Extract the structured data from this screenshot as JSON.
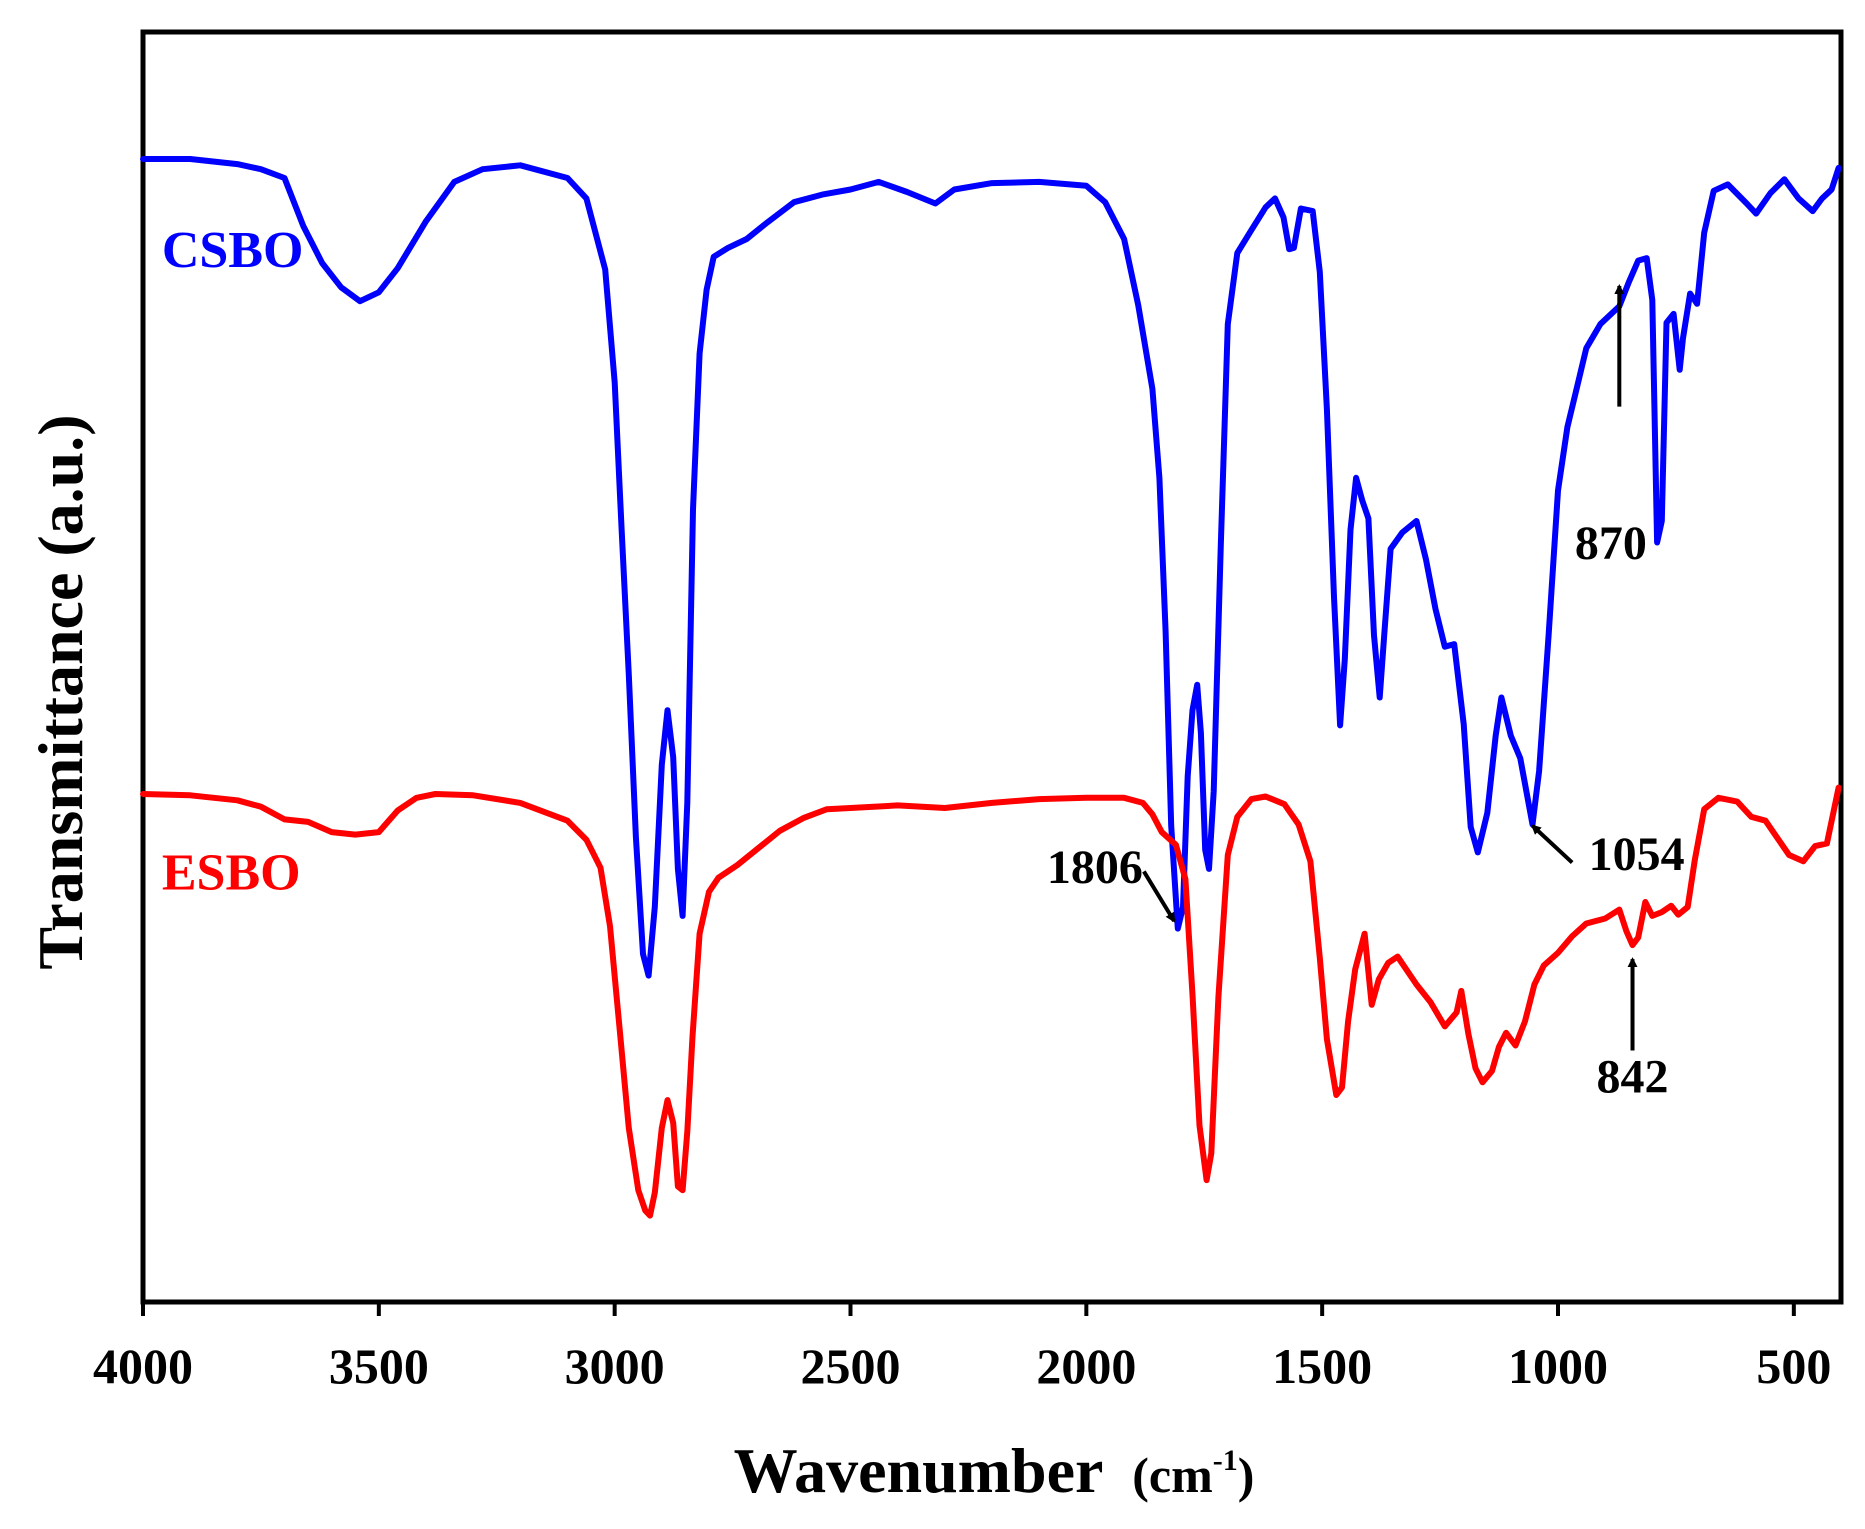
{
  "chart_data": {
    "type": "line",
    "title": "",
    "xlabel": "Wavenumber",
    "xlabel_unit": "(cm",
    "xlabel_sup": "-1",
    "xlabel_close": ")",
    "ylabel": "Transmittance (a.u.)",
    "xlim": [
      4000,
      400
    ],
    "ylim": [
      0,
      100
    ],
    "x_reversed": true,
    "y_ticks_shown": false,
    "grid": false,
    "x_ticks": [
      4000,
      3500,
      3000,
      2500,
      2000,
      1500,
      1000,
      500
    ],
    "x_tick_labels": [
      "4000",
      "3500",
      "3000",
      "2500",
      "2000",
      "1500",
      "1000",
      "500"
    ],
    "series": [
      {
        "name": "CSBO",
        "color": "#0000ff",
        "points": [
          [
            4000,
            90.0
          ],
          [
            3900,
            90.0
          ],
          [
            3800,
            89.6
          ],
          [
            3750,
            89.2
          ],
          [
            3700,
            88.5
          ],
          [
            3660,
            84.7
          ],
          [
            3620,
            81.8
          ],
          [
            3580,
            79.9
          ],
          [
            3540,
            78.8
          ],
          [
            3500,
            79.5
          ],
          [
            3460,
            81.4
          ],
          [
            3400,
            85.1
          ],
          [
            3340,
            88.2
          ],
          [
            3280,
            89.2
          ],
          [
            3200,
            89.5
          ],
          [
            3100,
            88.5
          ],
          [
            3060,
            86.9
          ],
          [
            3020,
            81.3
          ],
          [
            3000,
            72.4
          ],
          [
            2985,
            60.7
          ],
          [
            2970,
            49.4
          ],
          [
            2955,
            36.6
          ],
          [
            2940,
            27.4
          ],
          [
            2928,
            25.7
          ],
          [
            2915,
            31.1
          ],
          [
            2900,
            42.3
          ],
          [
            2888,
            46.6
          ],
          [
            2876,
            42.9
          ],
          [
            2866,
            34.1
          ],
          [
            2856,
            30.4
          ],
          [
            2846,
            39.3
          ],
          [
            2834,
            62.4
          ],
          [
            2820,
            74.7
          ],
          [
            2805,
            79.7
          ],
          [
            2790,
            82.3
          ],
          [
            2760,
            83.0
          ],
          [
            2720,
            83.7
          ],
          [
            2680,
            84.9
          ],
          [
            2620,
            86.6
          ],
          [
            2560,
            87.2
          ],
          [
            2500,
            87.6
          ],
          [
            2440,
            88.2
          ],
          [
            2380,
            87.4
          ],
          [
            2320,
            86.5
          ],
          [
            2280,
            87.6
          ],
          [
            2200,
            88.1
          ],
          [
            2100,
            88.2
          ],
          [
            2000,
            87.9
          ],
          [
            1960,
            86.6
          ],
          [
            1920,
            83.7
          ],
          [
            1890,
            78.5
          ],
          [
            1860,
            71.9
          ],
          [
            1845,
            64.9
          ],
          [
            1832,
            52.8
          ],
          [
            1820,
            37.5
          ],
          [
            1806,
            29.4
          ],
          [
            1795,
            31.1
          ],
          [
            1785,
            41.4
          ],
          [
            1775,
            46.6
          ],
          [
            1765,
            48.6
          ],
          [
            1757,
            44.8
          ],
          [
            1748,
            35.6
          ],
          [
            1740,
            34.1
          ],
          [
            1730,
            40.2
          ],
          [
            1715,
            59.6
          ],
          [
            1700,
            77.0
          ],
          [
            1680,
            82.6
          ],
          [
            1650,
            84.4
          ],
          [
            1620,
            86.2
          ],
          [
            1600,
            86.9
          ],
          [
            1582,
            85.4
          ],
          [
            1570,
            82.9
          ],
          [
            1560,
            83.0
          ],
          [
            1545,
            86.1
          ],
          [
            1520,
            85.9
          ],
          [
            1505,
            81.1
          ],
          [
            1490,
            70.3
          ],
          [
            1475,
            55.5
          ],
          [
            1462,
            45.4
          ],
          [
            1452,
            50.6
          ],
          [
            1440,
            60.8
          ],
          [
            1428,
            64.9
          ],
          [
            1415,
            63.1
          ],
          [
            1402,
            61.7
          ],
          [
            1390,
            52.5
          ],
          [
            1378,
            47.6
          ],
          [
            1368,
            52.7
          ],
          [
            1355,
            59.3
          ],
          [
            1330,
            60.6
          ],
          [
            1300,
            61.5
          ],
          [
            1280,
            58.5
          ],
          [
            1260,
            54.6
          ],
          [
            1240,
            51.6
          ],
          [
            1220,
            51.8
          ],
          [
            1200,
            45.5
          ],
          [
            1185,
            37.4
          ],
          [
            1170,
            35.4
          ],
          [
            1150,
            38.5
          ],
          [
            1132,
            44.6
          ],
          [
            1120,
            47.6
          ],
          [
            1100,
            44.6
          ],
          [
            1080,
            42.8
          ],
          [
            1054,
            37.6
          ],
          [
            1040,
            41.8
          ],
          [
            1020,
            52.5
          ],
          [
            1000,
            63.9
          ],
          [
            980,
            68.9
          ],
          [
            960,
            72.0
          ],
          [
            940,
            75.1
          ],
          [
            910,
            77.0
          ],
          [
            870,
            78.4
          ],
          [
            850,
            80.3
          ],
          [
            830,
            82.0
          ],
          [
            812,
            82.2
          ],
          [
            800,
            78.9
          ],
          [
            790,
            59.8
          ],
          [
            780,
            61.5
          ],
          [
            770,
            77.1
          ],
          [
            755,
            77.8
          ],
          [
            742,
            73.4
          ],
          [
            735,
            75.9
          ],
          [
            720,
            79.4
          ],
          [
            705,
            78.6
          ],
          [
            690,
            84.2
          ],
          [
            670,
            87.5
          ],
          [
            640,
            88.0
          ],
          [
            600,
            86.5
          ],
          [
            580,
            85.7
          ],
          [
            550,
            87.3
          ],
          [
            520,
            88.4
          ],
          [
            490,
            86.9
          ],
          [
            460,
            85.9
          ],
          [
            440,
            86.9
          ],
          [
            420,
            87.6
          ],
          [
            405,
            89.3
          ]
        ]
      },
      {
        "name": "ESBO",
        "color": "#ff0000",
        "points": [
          [
            4000,
            40.0
          ],
          [
            3900,
            39.9
          ],
          [
            3800,
            39.5
          ],
          [
            3750,
            39.0
          ],
          [
            3700,
            38.0
          ],
          [
            3650,
            37.8
          ],
          [
            3600,
            37.0
          ],
          [
            3550,
            36.8
          ],
          [
            3500,
            37.0
          ],
          [
            3460,
            38.7
          ],
          [
            3420,
            39.7
          ],
          [
            3380,
            40.0
          ],
          [
            3300,
            39.9
          ],
          [
            3200,
            39.3
          ],
          [
            3100,
            37.9
          ],
          [
            3060,
            36.4
          ],
          [
            3030,
            34.2
          ],
          [
            3010,
            29.6
          ],
          [
            2990,
            21.7
          ],
          [
            2970,
            13.7
          ],
          [
            2950,
            8.8
          ],
          [
            2935,
            7.2
          ],
          [
            2925,
            6.8
          ],
          [
            2915,
            8.6
          ],
          [
            2900,
            13.7
          ],
          [
            2888,
            15.9
          ],
          [
            2876,
            14.1
          ],
          [
            2866,
            9.1
          ],
          [
            2856,
            8.8
          ],
          [
            2846,
            13.4
          ],
          [
            2835,
            20.9
          ],
          [
            2820,
            29.0
          ],
          [
            2800,
            32.3
          ],
          [
            2780,
            33.4
          ],
          [
            2740,
            34.4
          ],
          [
            2700,
            35.6
          ],
          [
            2650,
            37.1
          ],
          [
            2600,
            38.1
          ],
          [
            2550,
            38.8
          ],
          [
            2500,
            38.9
          ],
          [
            2400,
            39.1
          ],
          [
            2300,
            38.9
          ],
          [
            2200,
            39.3
          ],
          [
            2100,
            39.6
          ],
          [
            2000,
            39.7
          ],
          [
            1920,
            39.7
          ],
          [
            1880,
            39.3
          ],
          [
            1860,
            38.4
          ],
          [
            1840,
            37.0
          ],
          [
            1810,
            36.0
          ],
          [
            1790,
            33.3
          ],
          [
            1775,
            24.2
          ],
          [
            1760,
            13.9
          ],
          [
            1745,
            9.6
          ],
          [
            1735,
            11.7
          ],
          [
            1720,
            24.0
          ],
          [
            1700,
            35.2
          ],
          [
            1680,
            38.2
          ],
          [
            1650,
            39.6
          ],
          [
            1620,
            39.8
          ],
          [
            1580,
            39.2
          ],
          [
            1550,
            37.6
          ],
          [
            1525,
            34.7
          ],
          [
            1505,
            27.1
          ],
          [
            1490,
            20.7
          ],
          [
            1470,
            16.3
          ],
          [
            1458,
            16.9
          ],
          [
            1445,
            22.1
          ],
          [
            1430,
            26.2
          ],
          [
            1410,
            29.0
          ],
          [
            1395,
            23.4
          ],
          [
            1380,
            25.4
          ],
          [
            1360,
            26.7
          ],
          [
            1340,
            27.2
          ],
          [
            1300,
            25.0
          ],
          [
            1270,
            23.6
          ],
          [
            1240,
            21.7
          ],
          [
            1215,
            22.8
          ],
          [
            1205,
            24.5
          ],
          [
            1190,
            21.1
          ],
          [
            1175,
            18.4
          ],
          [
            1160,
            17.3
          ],
          [
            1140,
            18.2
          ],
          [
            1125,
            20.1
          ],
          [
            1110,
            21.2
          ],
          [
            1090,
            20.2
          ],
          [
            1070,
            22.1
          ],
          [
            1050,
            25.0
          ],
          [
            1030,
            26.5
          ],
          [
            1000,
            27.5
          ],
          [
            970,
            28.8
          ],
          [
            940,
            29.8
          ],
          [
            900,
            30.2
          ],
          [
            870,
            30.9
          ],
          [
            855,
            29.2
          ],
          [
            842,
            28.1
          ],
          [
            830,
            28.7
          ],
          [
            815,
            31.5
          ],
          [
            800,
            30.4
          ],
          [
            780,
            30.7
          ],
          [
            760,
            31.2
          ],
          [
            745,
            30.5
          ],
          [
            725,
            31.1
          ],
          [
            710,
            34.8
          ],
          [
            690,
            38.8
          ],
          [
            660,
            39.7
          ],
          [
            620,
            39.4
          ],
          [
            590,
            38.2
          ],
          [
            560,
            37.9
          ],
          [
            540,
            36.8
          ],
          [
            510,
            35.2
          ],
          [
            480,
            34.7
          ],
          [
            455,
            35.9
          ],
          [
            430,
            36.1
          ],
          [
            405,
            40.5
          ]
        ]
      }
    ],
    "legend_labels": [
      {
        "text": "CSBO",
        "color": "#0000ff",
        "x": 3960,
        "y": 81.5
      },
      {
        "text": "ESBO",
        "color": "#ff0000",
        "x": 3960,
        "y": 32.5
      }
    ],
    "annotations": [
      {
        "text": "870",
        "text_x": 888,
        "text_y": 58.5,
        "tip_x": 870,
        "tip_y": 80.0,
        "tail_x": 870,
        "tail_y": 70.5,
        "anchor": "middle"
      },
      {
        "text": "1054",
        "text_x": 935,
        "text_y": 34.0,
        "tip_x": 1054,
        "tip_y": 37.5,
        "tail_x": 970,
        "tail_y": 34.6,
        "anchor": "start"
      },
      {
        "text": "1806",
        "text_x": 1880,
        "text_y": 33.0,
        "tip_x": 1814,
        "tip_y": 30.0,
        "tail_x": 1878,
        "tail_y": 33.9,
        "anchor": "end"
      },
      {
        "text": "842",
        "text_x": 842,
        "text_y": 16.5,
        "tip_x": 842,
        "tip_y": 27.0,
        "tail_x": 842,
        "tail_y": 19.8,
        "anchor": "middle"
      }
    ]
  }
}
